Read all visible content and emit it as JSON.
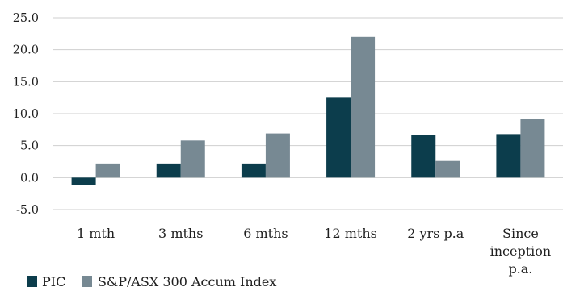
{
  "chart_data": {
    "type": "bar",
    "categories": [
      "1 mth",
      "3 mths",
      "6 mths",
      "12 mths",
      "2 yrs p.a",
      "Since inception p.a."
    ],
    "category_label_lines": [
      [
        "1 mth"
      ],
      [
        "3 mths"
      ],
      [
        "6 mths"
      ],
      [
        "12 mths"
      ],
      [
        "2 yrs p.a"
      ],
      [
        "Since",
        "inception",
        "p.a."
      ]
    ],
    "series": [
      {
        "name": "PIC",
        "color": "#0c3d4c",
        "values": [
          -1.2,
          2.2,
          2.2,
          12.6,
          6.7,
          6.8
        ]
      },
      {
        "name": "S&P/ASX 300 Accum Index",
        "color": "#778993",
        "values": [
          2.2,
          5.8,
          6.9,
          22.0,
          2.6,
          9.2
        ]
      }
    ],
    "ylim": [
      -5,
      25
    ],
    "yticks": [
      "-5.0",
      "0.0",
      "5.0",
      "10.0",
      "15.0",
      "20.0",
      "25.0"
    ],
    "gridlines": true,
    "legend_position": "bottom-left"
  }
}
